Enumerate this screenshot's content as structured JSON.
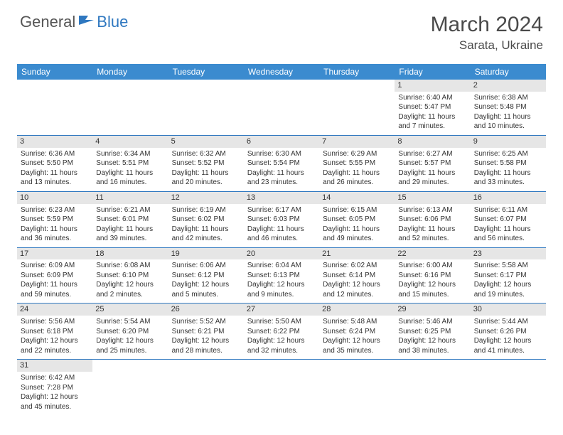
{
  "logo": {
    "general": "General",
    "blue": "Blue"
  },
  "title": "March 2024",
  "location": "Sarata, Ukraine",
  "colors": {
    "header_bg": "#3b8bcf",
    "header_text": "#ffffff",
    "daynum_bg": "#e6e6e6",
    "border": "#2f78c0",
    "logo_gray": "#555555",
    "logo_blue": "#2f78c0",
    "title_color": "#4a4a4a"
  },
  "dow": [
    "Sunday",
    "Monday",
    "Tuesday",
    "Wednesday",
    "Thursday",
    "Friday",
    "Saturday"
  ],
  "weeks": [
    [
      null,
      null,
      null,
      null,
      null,
      {
        "d": "1",
        "sr": "Sunrise: 6:40 AM",
        "ss": "Sunset: 5:47 PM",
        "dl1": "Daylight: 11 hours",
        "dl2": "and 7 minutes."
      },
      {
        "d": "2",
        "sr": "Sunrise: 6:38 AM",
        "ss": "Sunset: 5:48 PM",
        "dl1": "Daylight: 11 hours",
        "dl2": "and 10 minutes."
      }
    ],
    [
      {
        "d": "3",
        "sr": "Sunrise: 6:36 AM",
        "ss": "Sunset: 5:50 PM",
        "dl1": "Daylight: 11 hours",
        "dl2": "and 13 minutes."
      },
      {
        "d": "4",
        "sr": "Sunrise: 6:34 AM",
        "ss": "Sunset: 5:51 PM",
        "dl1": "Daylight: 11 hours",
        "dl2": "and 16 minutes."
      },
      {
        "d": "5",
        "sr": "Sunrise: 6:32 AM",
        "ss": "Sunset: 5:52 PM",
        "dl1": "Daylight: 11 hours",
        "dl2": "and 20 minutes."
      },
      {
        "d": "6",
        "sr": "Sunrise: 6:30 AM",
        "ss": "Sunset: 5:54 PM",
        "dl1": "Daylight: 11 hours",
        "dl2": "and 23 minutes."
      },
      {
        "d": "7",
        "sr": "Sunrise: 6:29 AM",
        "ss": "Sunset: 5:55 PM",
        "dl1": "Daylight: 11 hours",
        "dl2": "and 26 minutes."
      },
      {
        "d": "8",
        "sr": "Sunrise: 6:27 AM",
        "ss": "Sunset: 5:57 PM",
        "dl1": "Daylight: 11 hours",
        "dl2": "and 29 minutes."
      },
      {
        "d": "9",
        "sr": "Sunrise: 6:25 AM",
        "ss": "Sunset: 5:58 PM",
        "dl1": "Daylight: 11 hours",
        "dl2": "and 33 minutes."
      }
    ],
    [
      {
        "d": "10",
        "sr": "Sunrise: 6:23 AM",
        "ss": "Sunset: 5:59 PM",
        "dl1": "Daylight: 11 hours",
        "dl2": "and 36 minutes."
      },
      {
        "d": "11",
        "sr": "Sunrise: 6:21 AM",
        "ss": "Sunset: 6:01 PM",
        "dl1": "Daylight: 11 hours",
        "dl2": "and 39 minutes."
      },
      {
        "d": "12",
        "sr": "Sunrise: 6:19 AM",
        "ss": "Sunset: 6:02 PM",
        "dl1": "Daylight: 11 hours",
        "dl2": "and 42 minutes."
      },
      {
        "d": "13",
        "sr": "Sunrise: 6:17 AM",
        "ss": "Sunset: 6:03 PM",
        "dl1": "Daylight: 11 hours",
        "dl2": "and 46 minutes."
      },
      {
        "d": "14",
        "sr": "Sunrise: 6:15 AM",
        "ss": "Sunset: 6:05 PM",
        "dl1": "Daylight: 11 hours",
        "dl2": "and 49 minutes."
      },
      {
        "d": "15",
        "sr": "Sunrise: 6:13 AM",
        "ss": "Sunset: 6:06 PM",
        "dl1": "Daylight: 11 hours",
        "dl2": "and 52 minutes."
      },
      {
        "d": "16",
        "sr": "Sunrise: 6:11 AM",
        "ss": "Sunset: 6:07 PM",
        "dl1": "Daylight: 11 hours",
        "dl2": "and 56 minutes."
      }
    ],
    [
      {
        "d": "17",
        "sr": "Sunrise: 6:09 AM",
        "ss": "Sunset: 6:09 PM",
        "dl1": "Daylight: 11 hours",
        "dl2": "and 59 minutes."
      },
      {
        "d": "18",
        "sr": "Sunrise: 6:08 AM",
        "ss": "Sunset: 6:10 PM",
        "dl1": "Daylight: 12 hours",
        "dl2": "and 2 minutes."
      },
      {
        "d": "19",
        "sr": "Sunrise: 6:06 AM",
        "ss": "Sunset: 6:12 PM",
        "dl1": "Daylight: 12 hours",
        "dl2": "and 5 minutes."
      },
      {
        "d": "20",
        "sr": "Sunrise: 6:04 AM",
        "ss": "Sunset: 6:13 PM",
        "dl1": "Daylight: 12 hours",
        "dl2": "and 9 minutes."
      },
      {
        "d": "21",
        "sr": "Sunrise: 6:02 AM",
        "ss": "Sunset: 6:14 PM",
        "dl1": "Daylight: 12 hours",
        "dl2": "and 12 minutes."
      },
      {
        "d": "22",
        "sr": "Sunrise: 6:00 AM",
        "ss": "Sunset: 6:16 PM",
        "dl1": "Daylight: 12 hours",
        "dl2": "and 15 minutes."
      },
      {
        "d": "23",
        "sr": "Sunrise: 5:58 AM",
        "ss": "Sunset: 6:17 PM",
        "dl1": "Daylight: 12 hours",
        "dl2": "and 19 minutes."
      }
    ],
    [
      {
        "d": "24",
        "sr": "Sunrise: 5:56 AM",
        "ss": "Sunset: 6:18 PM",
        "dl1": "Daylight: 12 hours",
        "dl2": "and 22 minutes."
      },
      {
        "d": "25",
        "sr": "Sunrise: 5:54 AM",
        "ss": "Sunset: 6:20 PM",
        "dl1": "Daylight: 12 hours",
        "dl2": "and 25 minutes."
      },
      {
        "d": "26",
        "sr": "Sunrise: 5:52 AM",
        "ss": "Sunset: 6:21 PM",
        "dl1": "Daylight: 12 hours",
        "dl2": "and 28 minutes."
      },
      {
        "d": "27",
        "sr": "Sunrise: 5:50 AM",
        "ss": "Sunset: 6:22 PM",
        "dl1": "Daylight: 12 hours",
        "dl2": "and 32 minutes."
      },
      {
        "d": "28",
        "sr": "Sunrise: 5:48 AM",
        "ss": "Sunset: 6:24 PM",
        "dl1": "Daylight: 12 hours",
        "dl2": "and 35 minutes."
      },
      {
        "d": "29",
        "sr": "Sunrise: 5:46 AM",
        "ss": "Sunset: 6:25 PM",
        "dl1": "Daylight: 12 hours",
        "dl2": "and 38 minutes."
      },
      {
        "d": "30",
        "sr": "Sunrise: 5:44 AM",
        "ss": "Sunset: 6:26 PM",
        "dl1": "Daylight: 12 hours",
        "dl2": "and 41 minutes."
      }
    ],
    [
      {
        "d": "31",
        "sr": "Sunrise: 6:42 AM",
        "ss": "Sunset: 7:28 PM",
        "dl1": "Daylight: 12 hours",
        "dl2": "and 45 minutes."
      },
      null,
      null,
      null,
      null,
      null,
      null
    ]
  ]
}
